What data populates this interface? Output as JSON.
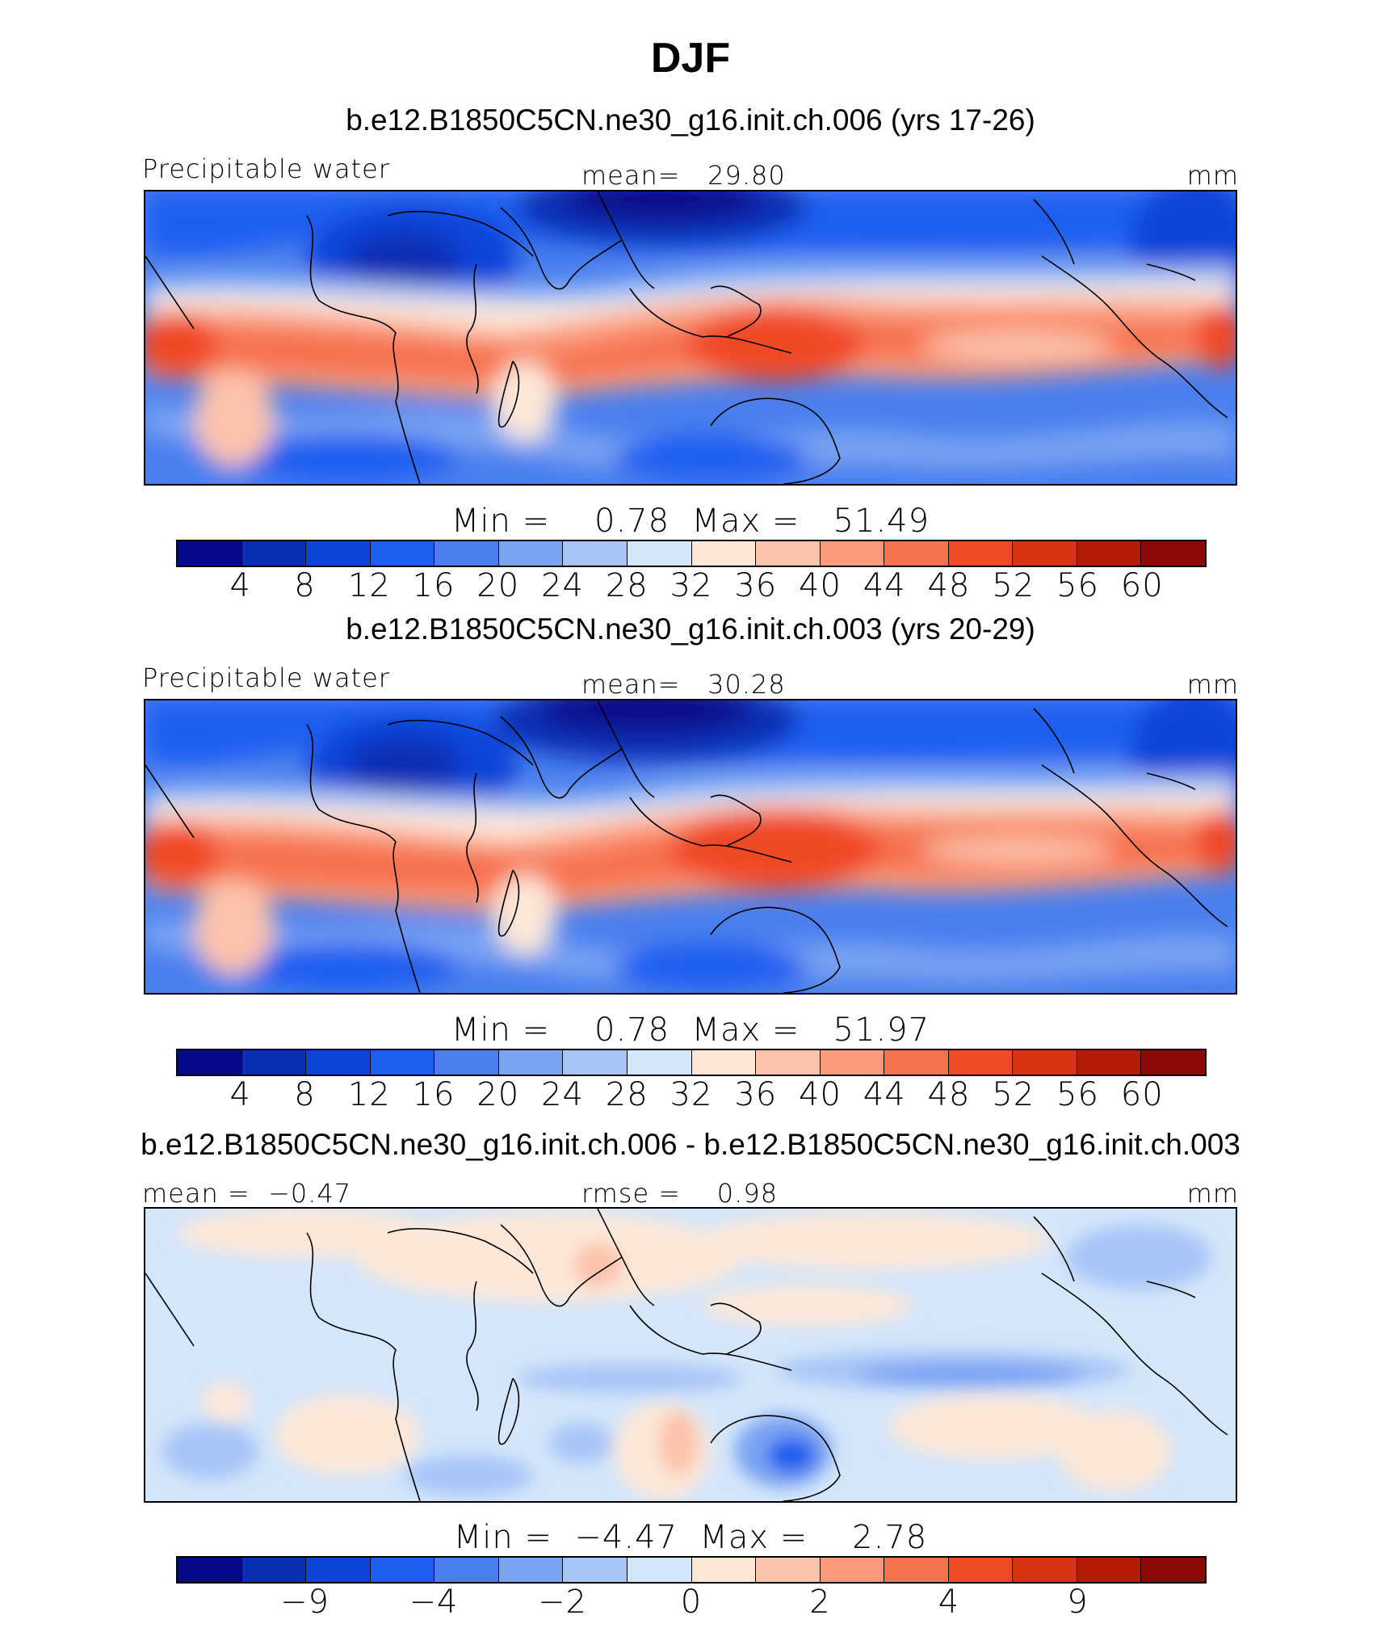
{
  "title": "DJF",
  "panels": [
    {
      "case_title": "b.e12.B1850C5CN.ne30_g16.init.ch.006 (yrs 17-26)",
      "var_label": "Precipitable water",
      "center_label": "mean=   29.80",
      "units": "mm",
      "minmax": "Min =    0.78  Max =   51.49",
      "type": "absolute",
      "colorbar": {
        "colors": [
          "#08088a",
          "#0b2fb4",
          "#0d44d8",
          "#1f5ff0",
          "#4a7fee",
          "#7aa3f3",
          "#a8c5f7",
          "#d4e6fa",
          "#fde8d8",
          "#fcc3ab",
          "#fa9a7c",
          "#f6714e",
          "#f04a26",
          "#d93210",
          "#b51c08",
          "#8b0a06"
        ],
        "ticks": [
          "4",
          "8",
          "12",
          "16",
          "20",
          "24",
          "28",
          "32",
          "36",
          "40",
          "44",
          "48",
          "52",
          "56",
          "60"
        ]
      }
    },
    {
      "case_title": "b.e12.B1850C5CN.ne30_g16.init.ch.003 (yrs 20-29)",
      "var_label": "Precipitable water",
      "center_label": "mean=   30.28",
      "units": "mm",
      "minmax": "Min =    0.78  Max =   51.97",
      "type": "absolute",
      "colorbar": {
        "colors": [
          "#08088a",
          "#0b2fb4",
          "#0d44d8",
          "#1f5ff0",
          "#4a7fee",
          "#7aa3f3",
          "#a8c5f7",
          "#d4e6fa",
          "#fde8d8",
          "#fcc3ab",
          "#fa9a7c",
          "#f6714e",
          "#f04a26",
          "#d93210",
          "#b51c08",
          "#8b0a06"
        ],
        "ticks": [
          "4",
          "8",
          "12",
          "16",
          "20",
          "24",
          "28",
          "32",
          "36",
          "40",
          "44",
          "48",
          "52",
          "56",
          "60"
        ]
      }
    },
    {
      "case_title": "b.e12.B1850C5CN.ne30_g16.init.ch.006 - b.e12.B1850C5CN.ne30_g16.init.ch.003",
      "var_label": "mean =  −0.47",
      "center_label": "rmse =    0.98",
      "units": "mm",
      "minmax": "Min =  −4.47  Max =    2.78",
      "type": "difference",
      "colorbar": {
        "colors": [
          "#08088a",
          "#0b2fb4",
          "#0d44d8",
          "#1f5ff0",
          "#4a7fee",
          "#7aa3f3",
          "#a8c5f7",
          "#d4e6fa",
          "#fde8d8",
          "#fcc3ab",
          "#fa9a7c",
          "#f6714e",
          "#f04a26",
          "#d93210",
          "#b51c08",
          "#8b0a06"
        ],
        "ticks": [
          "−9",
          "−4",
          "−2",
          "0",
          "2",
          "4",
          "9"
        ],
        "tick_boundaries": [
          2,
          4,
          6,
          8,
          10,
          12,
          14
        ]
      }
    }
  ]
}
